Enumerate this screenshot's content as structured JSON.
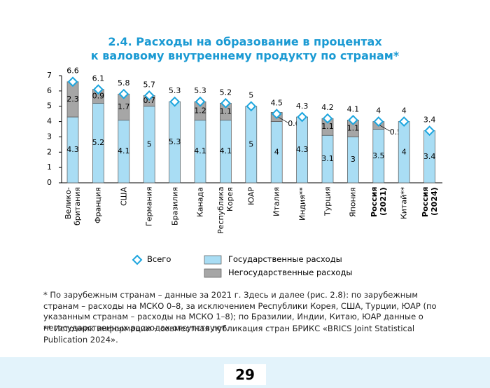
{
  "chart_data": {
    "type": "stacked-bar",
    "title": "2.4. Расходы на образование в процентах\nк валовому внутреннему продукту по странам*",
    "categories": [
      "Велико-\nбритания",
      "Франция",
      "США",
      "Германия",
      "Бразилия",
      "Канада",
      "Республика\nКорея",
      "ЮАР",
      "Италия",
      "Индия**",
      "Турция",
      "Япония",
      "Россия\n(2021)",
      "Китай**",
      "Россия\n(2024)"
    ],
    "bold_categories": [
      12,
      14
    ],
    "series": [
      {
        "name": "Государственные расходы",
        "color": "#a9ddf4",
        "values": [
          4.3,
          5.2,
          4.1,
          5.0,
          5.3,
          4.1,
          4.1,
          5.0,
          4.0,
          4.3,
          3.1,
          3.0,
          3.5,
          4.0,
          3.4
        ]
      },
      {
        "name": "Негосударственные расходы",
        "color": "#a6a6a6",
        "values": [
          2.3,
          0.9,
          1.7,
          0.7,
          null,
          1.2,
          1.1,
          null,
          0.6,
          null,
          1.1,
          1.1,
          0.5,
          null,
          null
        ]
      }
    ],
    "total": {
      "name": "Всего",
      "color": "#1ca5de",
      "values": [
        6.6,
        6.1,
        5.8,
        5.7,
        5.3,
        5.3,
        5.2,
        5.0,
        4.5,
        4.3,
        4.2,
        4.1,
        4.0,
        4.0,
        3.4
      ]
    },
    "ylim": [
      0,
      7
    ],
    "yticks": [
      0,
      1,
      2,
      3,
      4,
      5,
      6,
      7
    ],
    "footnotes": [
      "* По зарубежным странам – данные за 2021 г. Здесь и далее (рис. 2.8): по зарубежным странам – расходы на МСКО 0–8, за исключением Республики Корея, США, Турции, ЮАР (по указанным странам – расходы на МСКО 1–8); по Бразилии, Индии, Китаю, ЮАР данные о негосударственных расходах отсутствуют.",
      "** Источник информации – совместная публикация стран БРИКС «BRICS Joint Statistical Publication 2024»."
    ],
    "page_number": "29"
  }
}
